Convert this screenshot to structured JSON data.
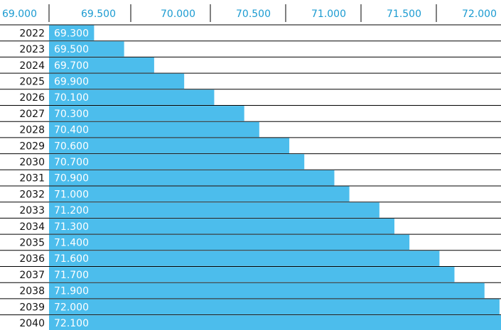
{
  "colors": {
    "bar": "#4cbdec",
    "bar_label": "#ffffff",
    "axis_label": "#1b9bd1",
    "year_label": "#111111",
    "grid": "#000000"
  },
  "chart_data": {
    "type": "bar",
    "orientation": "horizontal",
    "title": "",
    "xlabel": "",
    "ylabel": "",
    "xlim": [
      69.0,
      72.0
    ],
    "x_ticks": [
      "69.000",
      "69.500",
      "70.000",
      "70.500",
      "71.000",
      "71.500",
      "72.000"
    ],
    "x_tick_values": [
      69.0,
      69.5,
      70.0,
      70.5,
      71.0,
      71.5,
      72.0
    ],
    "x_axis_position": "top",
    "categories": [
      "2022",
      "2023",
      "2024",
      "2025",
      "2026",
      "2027",
      "2028",
      "2029",
      "2030",
      "2031",
      "2032",
      "2033",
      "2034",
      "2035",
      "2036",
      "2037",
      "2038",
      "2039",
      "2040"
    ],
    "values": [
      69.3,
      69.5,
      69.7,
      69.9,
      70.1,
      70.3,
      70.4,
      70.6,
      70.7,
      70.9,
      71.0,
      71.2,
      71.3,
      71.4,
      71.6,
      71.7,
      71.9,
      72.0,
      72.1
    ],
    "value_labels": [
      "69.300",
      "69.500",
      "69.700",
      "69.900",
      "70.100",
      "70.300",
      "70.400",
      "70.600",
      "70.700",
      "70.900",
      "71.000",
      "71.200",
      "71.300",
      "71.400",
      "71.600",
      "71.700",
      "71.900",
      "72.000",
      "72.100"
    ],
    "grid": "horizontal row separators"
  }
}
